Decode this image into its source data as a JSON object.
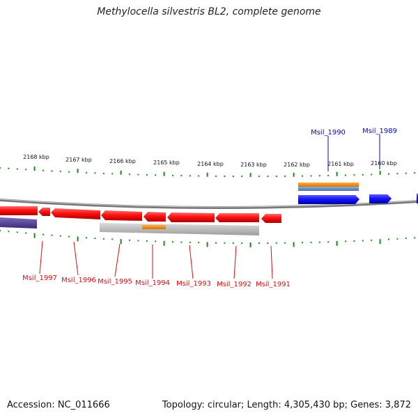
{
  "title": "Methylocella silvestris BL2, complete genome",
  "footer": {
    "accession": "Accession: NC_011666",
    "summary": "Topology: circular; Length: 4,305,430 bp; Genes: 3,872"
  },
  "colors": {
    "tick": "#1a8a1a",
    "reverse_gene": "#ff0000",
    "forward_gene": "#1a1aff",
    "reverse_label": "#cc1111",
    "forward_label": "#0a0aa0",
    "backbone": "#888888",
    "orange_feature": "#f0901a",
    "steelblue_feature": "#6a8fc0",
    "gray_feature": "#b8b8b8",
    "purple_feature": "#5a4a9a"
  },
  "kbp_labels": [
    "2168 kbp",
    "2167 kbp",
    "2166 kbp",
    "2165 kbp",
    "2164 kbp",
    "2163 kbp",
    "2162 kbp",
    "2161 kbp",
    "2160 kbp"
  ],
  "gene_labels": {
    "forward": [
      "Msil_1990",
      "Msil_1989"
    ],
    "reverse": [
      "Msil_1997",
      "Msil_1996",
      "Msil_1995",
      "Msil_1994",
      "Msil_1993",
      "Msil_1992",
      "Msil_1991"
    ]
  }
}
